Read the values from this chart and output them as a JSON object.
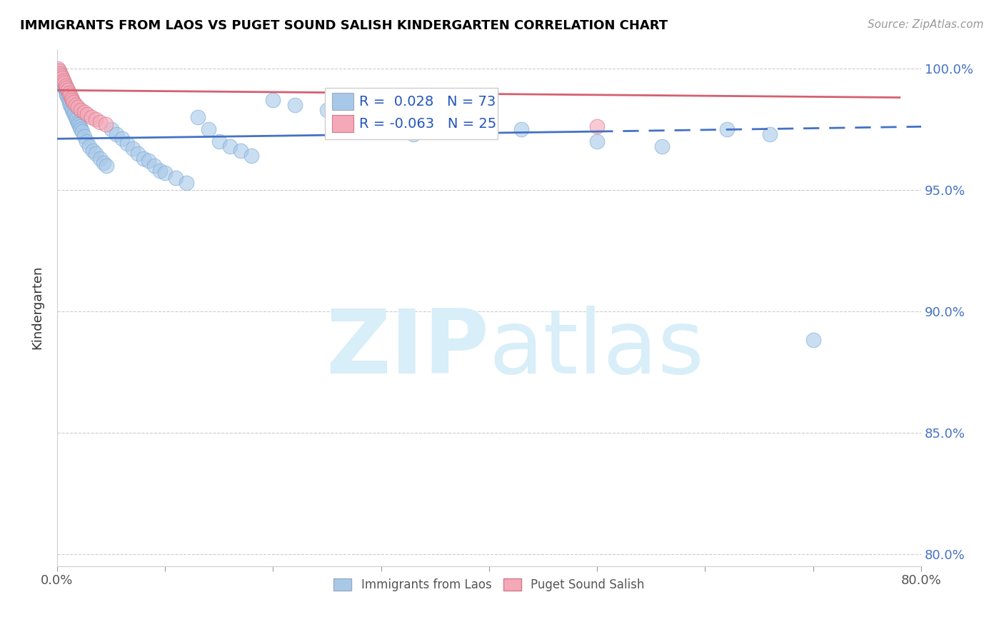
{
  "title": "IMMIGRANTS FROM LAOS VS PUGET SOUND SALISH KINDERGARTEN CORRELATION CHART",
  "source_text": "Source: ZipAtlas.com",
  "ylabel": "Kindergarten",
  "xlim": [
    0.0,
    0.8
  ],
  "ylim": [
    0.795,
    1.008
  ],
  "yticks": [
    0.8,
    0.85,
    0.9,
    0.95,
    1.0
  ],
  "ytick_labels": [
    "80.0%",
    "85.0%",
    "90.0%",
    "95.0%",
    "100.0%"
  ],
  "xticks": [
    0.0,
    0.1,
    0.2,
    0.3,
    0.4,
    0.5,
    0.6,
    0.7,
    0.8
  ],
  "xtick_labels": [
    "0.0%",
    "",
    "",
    "",
    "",
    "",
    "",
    "",
    "80.0%"
  ],
  "blue_r": 0.028,
  "blue_n": 73,
  "pink_r": -0.063,
  "pink_n": 25,
  "blue_color": "#A8C8E8",
  "pink_color": "#F4A8B8",
  "blue_line_color": "#4472C4",
  "pink_line_color": "#D46070",
  "watermark_color": "#D8EEF8",
  "blue_scatter_x": [
    0.001,
    0.002,
    0.002,
    0.003,
    0.003,
    0.004,
    0.004,
    0.005,
    0.005,
    0.006,
    0.006,
    0.007,
    0.007,
    0.008,
    0.008,
    0.009,
    0.009,
    0.01,
    0.01,
    0.011,
    0.011,
    0.012,
    0.013,
    0.014,
    0.015,
    0.016,
    0.017,
    0.018,
    0.019,
    0.02,
    0.021,
    0.022,
    0.023,
    0.025,
    0.027,
    0.03,
    0.033,
    0.036,
    0.04,
    0.043,
    0.046,
    0.05,
    0.055,
    0.06,
    0.065,
    0.07,
    0.075,
    0.08,
    0.085,
    0.09,
    0.095,
    0.1,
    0.11,
    0.12,
    0.13,
    0.14,
    0.15,
    0.16,
    0.17,
    0.18,
    0.2,
    0.22,
    0.25,
    0.27,
    0.3,
    0.33,
    0.38,
    0.43,
    0.5,
    0.56,
    0.62,
    0.66,
    0.7
  ],
  "blue_scatter_y": [
    0.999,
    0.998,
    0.997,
    0.997,
    0.996,
    0.996,
    0.995,
    0.995,
    0.994,
    0.994,
    0.993,
    0.993,
    0.992,
    0.992,
    0.991,
    0.99,
    0.989,
    0.989,
    0.988,
    0.987,
    0.986,
    0.985,
    0.984,
    0.983,
    0.982,
    0.981,
    0.98,
    0.979,
    0.978,
    0.977,
    0.976,
    0.975,
    0.974,
    0.972,
    0.97,
    0.968,
    0.966,
    0.965,
    0.963,
    0.961,
    0.96,
    0.975,
    0.973,
    0.971,
    0.969,
    0.967,
    0.965,
    0.963,
    0.962,
    0.96,
    0.958,
    0.957,
    0.955,
    0.953,
    0.98,
    0.975,
    0.97,
    0.968,
    0.966,
    0.964,
    0.987,
    0.985,
    0.983,
    0.982,
    0.975,
    0.973,
    0.98,
    0.975,
    0.97,
    0.968,
    0.975,
    0.973,
    0.888
  ],
  "pink_scatter_x": [
    0.001,
    0.002,
    0.003,
    0.004,
    0.005,
    0.006,
    0.007,
    0.008,
    0.009,
    0.01,
    0.011,
    0.012,
    0.013,
    0.014,
    0.015,
    0.017,
    0.019,
    0.022,
    0.025,
    0.028,
    0.032,
    0.036,
    0.04,
    0.045,
    0.5
  ],
  "pink_scatter_y": [
    1.0,
    0.999,
    0.998,
    0.997,
    0.996,
    0.995,
    0.994,
    0.993,
    0.992,
    0.991,
    0.99,
    0.989,
    0.988,
    0.987,
    0.986,
    0.985,
    0.984,
    0.983,
    0.982,
    0.981,
    0.98,
    0.979,
    0.978,
    0.977,
    0.976
  ],
  "blue_trend_x0": 0.0,
  "blue_trend_y0": 0.971,
  "blue_trend_x1": 0.5,
  "blue_trend_y1": 0.974,
  "blue_trend_xdash0": 0.5,
  "blue_trend_ydash0": 0.974,
  "blue_trend_xdash1": 0.8,
  "blue_trend_ydash1": 0.976,
  "pink_trend_x0": 0.0,
  "pink_trend_y0": 0.991,
  "pink_trend_x1": 0.78,
  "pink_trend_y1": 0.988
}
